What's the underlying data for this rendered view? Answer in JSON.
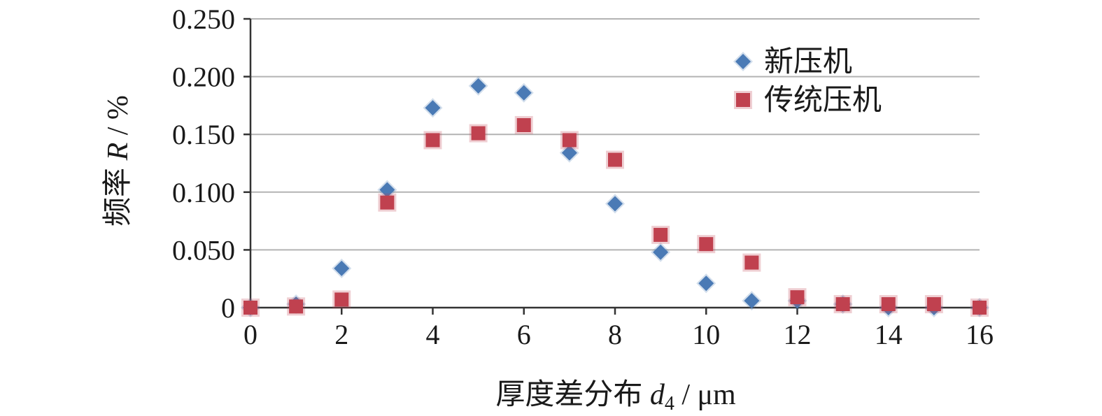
{
  "chart_data": {
    "type": "scatter",
    "title": "",
    "xlabel": {
      "prefix": "厚度差分布 ",
      "var": "d",
      "sub": "4",
      "suffix": " / μm"
    },
    "ylabel": {
      "prefix": "频率 ",
      "var": "R",
      "suffix": " / %"
    },
    "xlim": [
      0,
      16
    ],
    "ylim": [
      0,
      0.25
    ],
    "x_ticks": [
      0,
      2,
      4,
      6,
      8,
      10,
      12,
      14,
      16
    ],
    "x_tick_labels": [
      "0",
      "2",
      "4",
      "6",
      "8",
      "10",
      "12",
      "14",
      "16"
    ],
    "y_ticks": [
      0,
      0.05,
      0.1,
      0.15,
      0.2,
      0.25
    ],
    "y_tick_labels": [
      "0",
      "0.050",
      "0.100",
      "0.150",
      "0.200",
      "0.250"
    ],
    "grid": "horizontal",
    "legend_position": "top-right",
    "series": [
      {
        "name": "新压机",
        "marker": "diamond",
        "color": "#4a7ab5",
        "x": [
          0,
          1,
          2,
          3,
          4,
          5,
          6,
          7,
          8,
          9,
          10,
          11,
          12,
          13,
          14,
          15,
          16
        ],
        "y": [
          0,
          0.003,
          0.034,
          0.102,
          0.173,
          0.192,
          0.186,
          0.134,
          0.09,
          0.048,
          0.021,
          0.006,
          0.006,
          0.003,
          0,
          0,
          0
        ]
      },
      {
        "name": "传统压机",
        "marker": "square",
        "color": "#c0414f",
        "x": [
          0,
          1,
          2,
          3,
          4,
          5,
          6,
          7,
          8,
          9,
          10,
          11,
          12,
          13,
          14,
          15,
          16
        ],
        "y": [
          0,
          0.001,
          0.007,
          0.091,
          0.145,
          0.151,
          0.158,
          0.145,
          0.128,
          0.063,
          0.055,
          0.039,
          0.009,
          0.003,
          0.003,
          0.003,
          0
        ]
      }
    ]
  }
}
